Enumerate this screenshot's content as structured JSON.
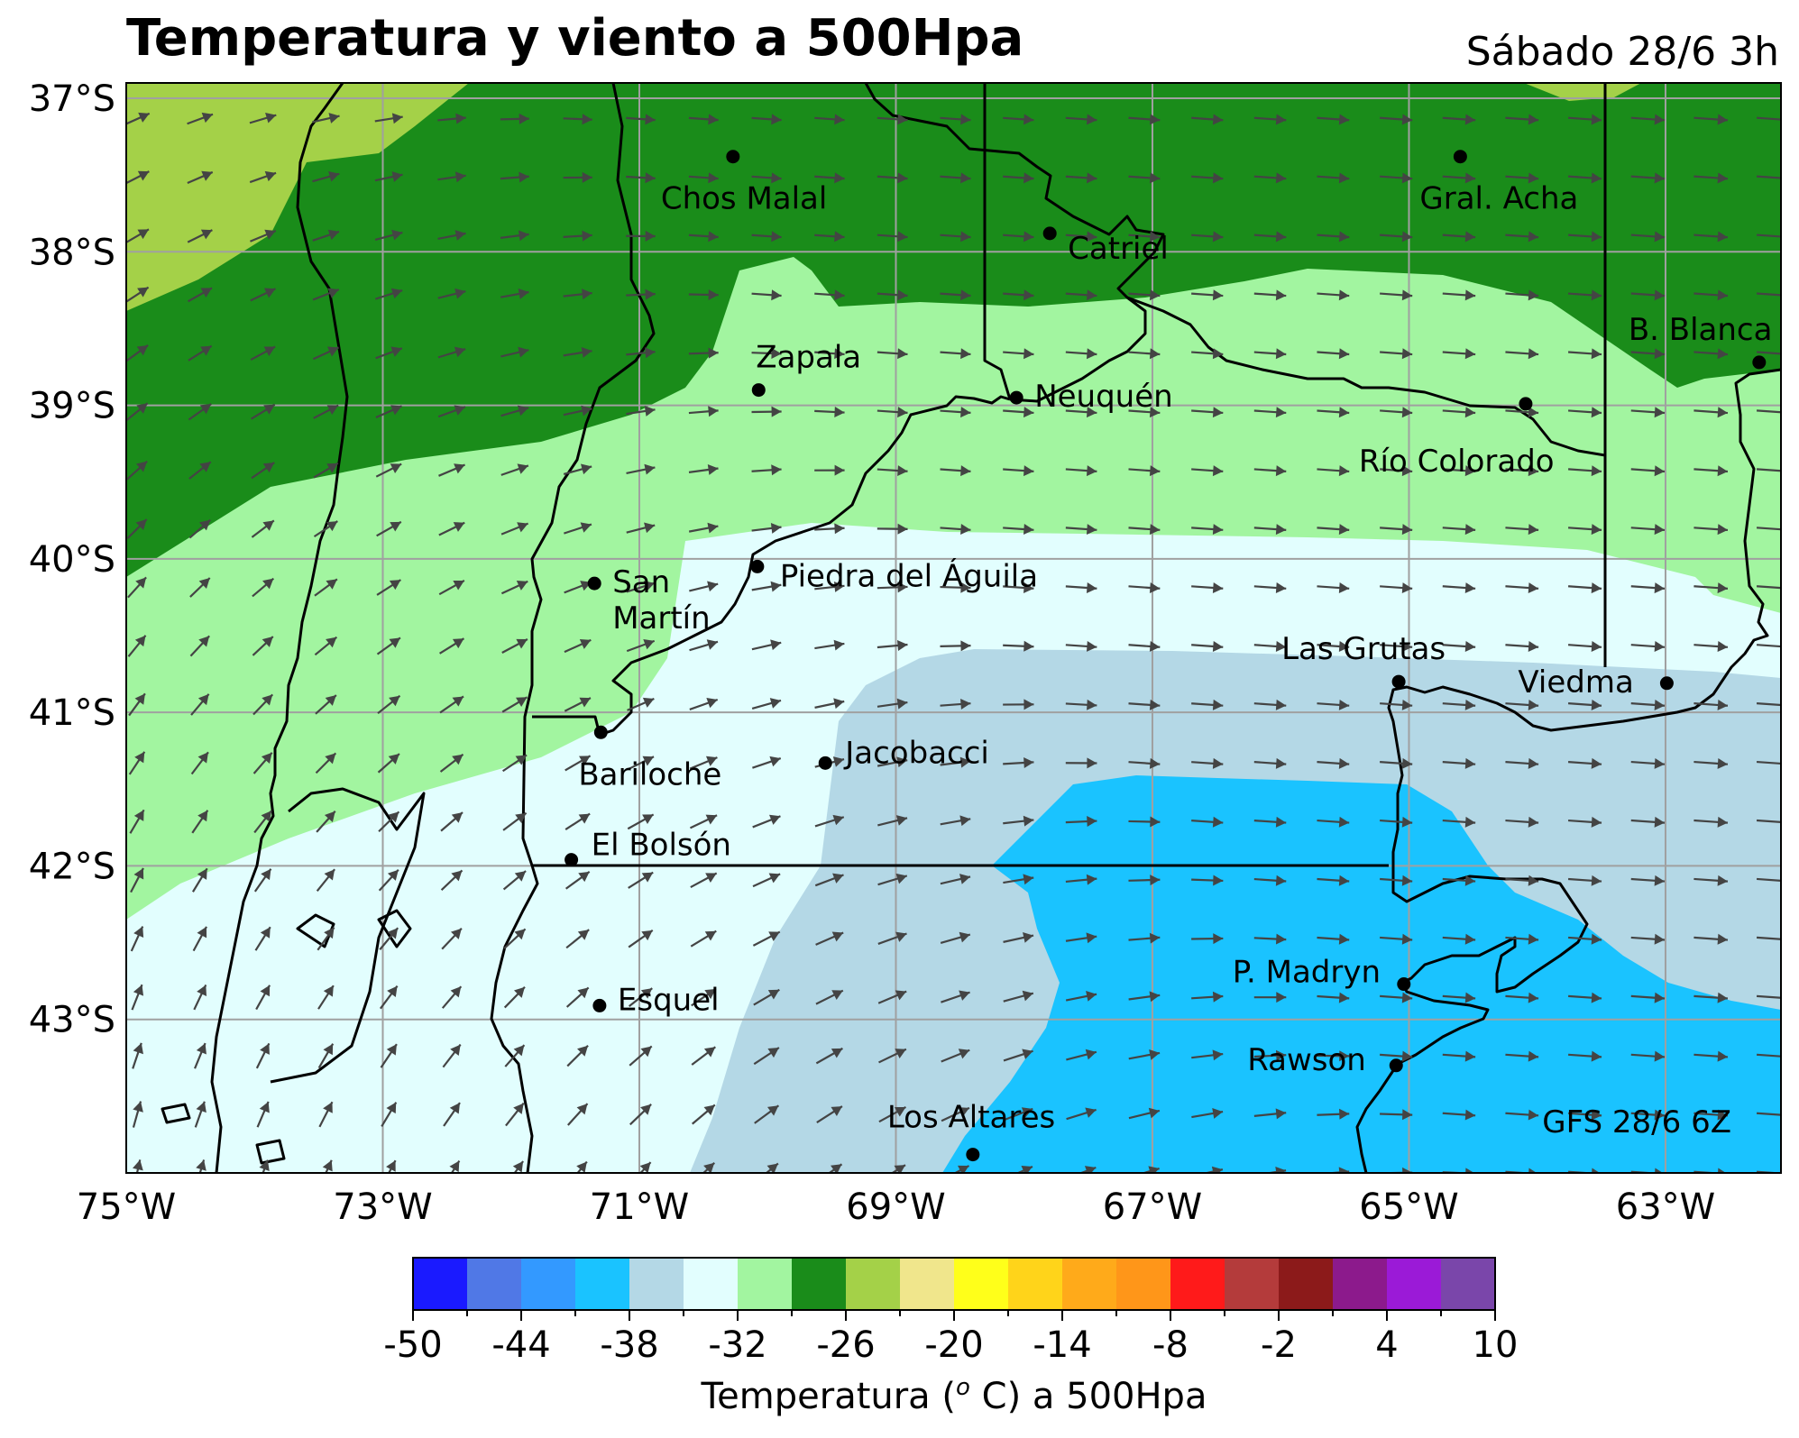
{
  "title": "Temperatura y viento a 500Hpa",
  "datetime": "Sábado 28/6 3h",
  "model_run": "GFS 28/6 6Z",
  "lat_labels": [
    "37°S",
    "38°S",
    "39°S",
    "40°S",
    "41°S",
    "42°S",
    "43°S"
  ],
  "lon_labels": [
    "75°W",
    "73°W",
    "71°W",
    "69°W",
    "67°W",
    "65°W",
    "63°W"
  ],
  "colorbar": {
    "label_prefix": "Temperatura (",
    "label_sup": "o",
    "label_suffix": " C) a 500Hpa",
    "ticks": [
      "-50",
      "-44",
      "-38",
      "-32",
      "-26",
      "-20",
      "-14",
      "-8",
      "-2",
      "4",
      "10"
    ],
    "colors": [
      "#1a1aff",
      "#5078e6",
      "#3399ff",
      "#1ac3ff",
      "#b4d8e6",
      "#e2fefe",
      "#a2f5a0",
      "#1a8c1a",
      "#a4d148",
      "#f0e68c",
      "#ffff1a",
      "#ffd41a",
      "#ffaa1a",
      "#ff9619",
      "#ff1a1a",
      "#b43b3b",
      "#8c1a1a",
      "#8c1a8c",
      "#9b1ad7",
      "#7a46aa"
    ]
  },
  "cities": [
    {
      "name": "Chos Malal",
      "lon": -70.27,
      "lat": -37.38
    },
    {
      "name": "Gral. Acha",
      "lon": -64.6,
      "lat": -37.38
    },
    {
      "name": "Catriel",
      "lon": -67.8,
      "lat": -37.88
    },
    {
      "name": "B. Blanca",
      "lon": -62.27,
      "lat": -38.72
    },
    {
      "name": "Zapala",
      "lon": -70.07,
      "lat": -38.9
    },
    {
      "name": "Neuquén",
      "lon": -68.06,
      "lat": -38.95
    },
    {
      "name": "Río Colorado",
      "lon": -64.09,
      "lat": -38.99
    },
    {
      "name": "San Martín",
      "lon": -71.35,
      "lat": -40.16
    },
    {
      "name": "Piedra del Águila",
      "lon": -70.08,
      "lat": -40.05
    },
    {
      "name": "Las Grutas",
      "lon": -65.08,
      "lat": -40.8
    },
    {
      "name": "Viedma",
      "lon": -62.99,
      "lat": -40.81
    },
    {
      "name": "Bariloche",
      "lon": -71.3,
      "lat": -41.13
    },
    {
      "name": "Jacobacci",
      "lon": -69.55,
      "lat": -41.33
    },
    {
      "name": "El Bolsón",
      "lon": -71.53,
      "lat": -41.96
    },
    {
      "name": "P. Madryn",
      "lon": -65.04,
      "lat": -42.77
    },
    {
      "name": "Esquel",
      "lon": -71.31,
      "lat": -42.91
    },
    {
      "name": "Rawson",
      "lon": -65.1,
      "lat": -43.3
    },
    {
      "name": "Los Altares",
      "lon": -68.4,
      "lat": -43.88
    }
  ],
  "colors": {
    "coast": "#000000",
    "grid": "#a0a0a0",
    "wind_arrow": "#444444"
  },
  "icons": {
    "city": "filled-circle-marker",
    "wind": "arrow-icon"
  }
}
